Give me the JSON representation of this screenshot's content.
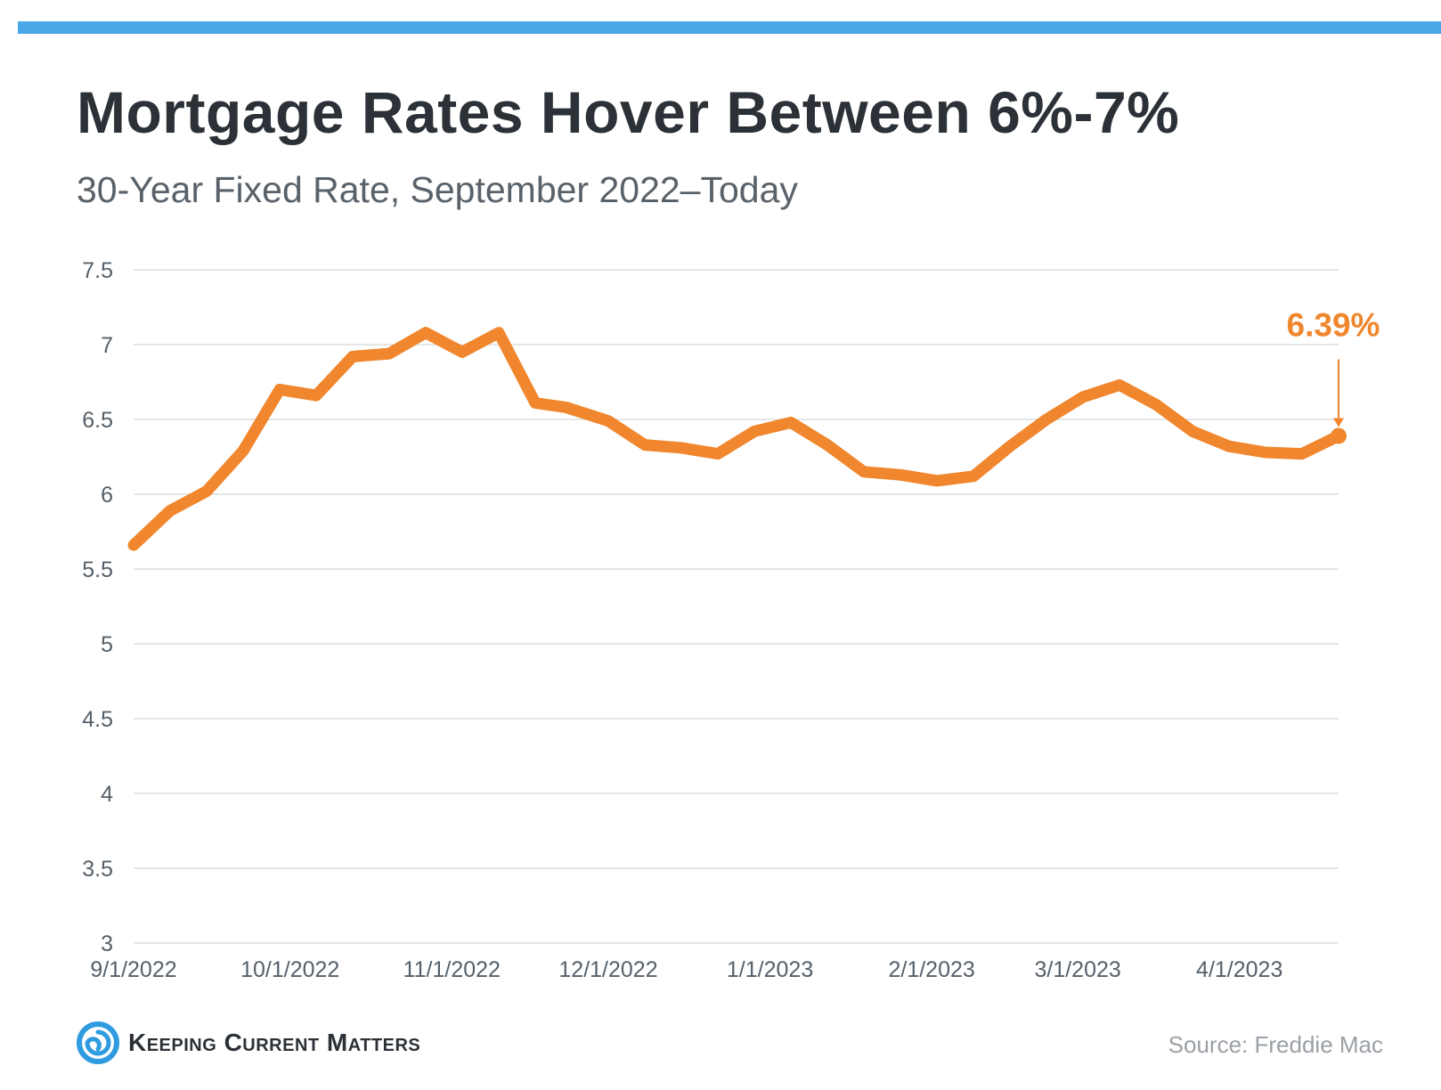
{
  "colors": {
    "accent_bar": "#4aa8e8",
    "line": "#f0872e",
    "grid": "#dedede",
    "title": "#2b3137",
    "subtitle": "#59626a",
    "source": "#9aa0a6",
    "logo_blue": "#2f9be0"
  },
  "header": {
    "title": "Mortgage Rates Hover Between 6%-7%",
    "subtitle": "30-Year Fixed Rate, September 2022–Today"
  },
  "chart_data": {
    "type": "line",
    "title": "Mortgage Rates Hover Between 6%-7%",
    "subtitle": "30-Year Fixed Rate, September 2022–Today",
    "xlabel": "",
    "ylabel": "",
    "ylim": [
      3,
      7.5
    ],
    "y_ticks": [
      "3",
      "3.5",
      "4",
      "4.5",
      "5",
      "5.5",
      "6",
      "6.5",
      "7",
      "7.5"
    ],
    "x_ticks": [
      "9/1/2022",
      "10/1/2022",
      "11/1/2022",
      "12/1/2022",
      "1/1/2023",
      "2/1/2023",
      "3/1/2023",
      "4/1/2023"
    ],
    "grid": true,
    "legend": "none",
    "series": [
      {
        "x": [
          "9/1/2022",
          "9/8/2022",
          "9/15/2022",
          "9/22/2022",
          "9/29/2022",
          "10/6/2022",
          "10/13/2022",
          "10/20/2022",
          "10/27/2022",
          "11/3/2022",
          "11/10/2022",
          "11/17/2022",
          "11/23/2022",
          "12/1/2022",
          "12/8/2022",
          "12/15/2022",
          "12/22/2022",
          "12/29/2022",
          "1/5/2023",
          "1/12/2023",
          "1/19/2023",
          "1/26/2023",
          "2/2/2023",
          "2/9/2023",
          "2/16/2023",
          "2/23/2023",
          "3/2/2023",
          "3/9/2023",
          "3/16/2023",
          "3/23/2023",
          "3/30/2023",
          "4/6/2023",
          "4/13/2023",
          "4/20/2023"
        ],
        "values": [
          5.66,
          5.89,
          6.02,
          6.29,
          6.7,
          6.66,
          6.92,
          6.94,
          7.08,
          6.95,
          7.08,
          6.61,
          6.58,
          6.49,
          6.33,
          6.31,
          6.27,
          6.42,
          6.48,
          6.33,
          6.15,
          6.13,
          6.09,
          6.12,
          6.32,
          6.5,
          6.65,
          6.73,
          6.6,
          6.42,
          6.32,
          6.28,
          6.27,
          6.39
        ]
      }
    ],
    "annotation": {
      "label": "6.39%",
      "x": "4/20/2023",
      "value": 6.39
    }
  },
  "footer": {
    "logo_text": "Keeping Current Matters",
    "source": "Source: Freddie Mac"
  }
}
